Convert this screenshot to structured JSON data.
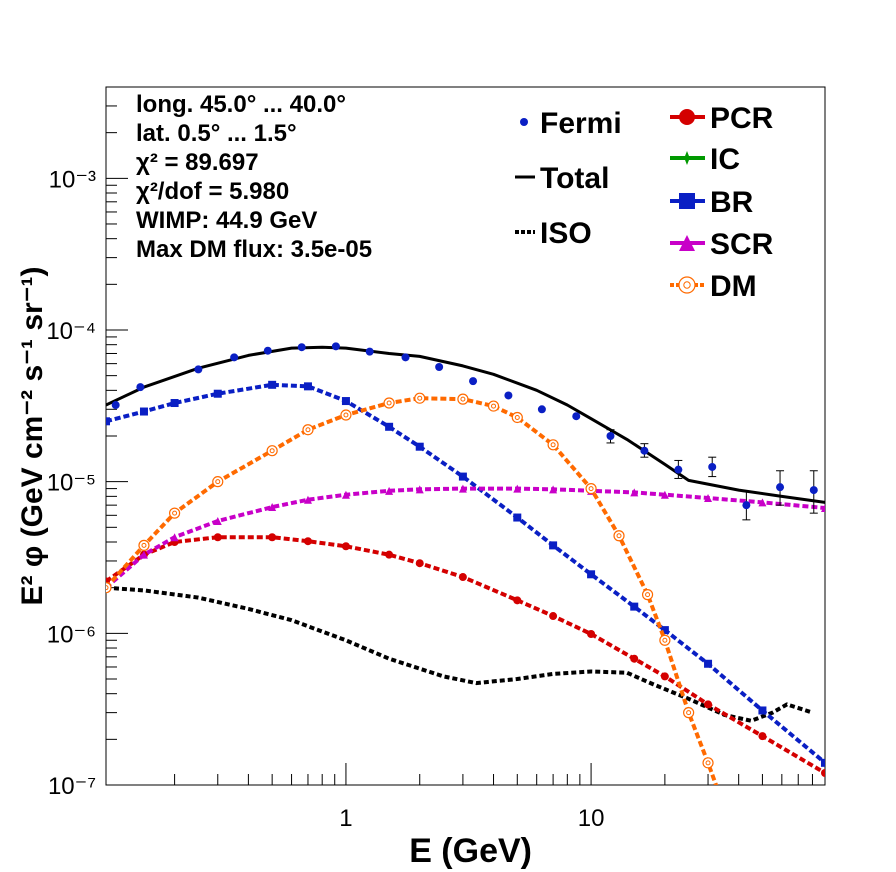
{
  "chart_data": {
    "type": "scatter",
    "xlabel": "E (GeV)",
    "ylabel": "E² φ (GeV cm⁻² s⁻¹ sr⁻¹)",
    "xscale": "log",
    "yscale": "log",
    "xlim": [
      0.105,
      90
    ],
    "ylim": [
      1e-07,
      0.004
    ],
    "x_tick_labels": [
      "1",
      "10"
    ],
    "y_tick_labels": [
      "10⁻⁷",
      "10⁻⁶",
      "10⁻⁵",
      "10⁻⁴",
      "10⁻³"
    ],
    "y_ticks": [
      1e-07,
      1e-06,
      1e-05,
      0.0001,
      0.001
    ],
    "x_ticks": [
      1,
      10
    ],
    "info_lines": [
      "long. 45.0° ... 40.0°",
      "lat. 0.5° ... 1.5°",
      "χ² = 89.697",
      "χ²/dof = 5.980",
      "WIMP: 44.9 GeV",
      "Max DM flux: 3.5e-05"
    ],
    "legend_placement": "top-right",
    "legend_left": [
      "Fermi",
      "Total",
      "ISO"
    ],
    "legend_right": [
      "PCR",
      "IC",
      "BR",
      "SCR",
      "DM"
    ],
    "fermi": {
      "name": "Fermi",
      "color": "#0a1fc4",
      "x": [
        0.115,
        0.145,
        0.25,
        0.35,
        0.48,
        0.66,
        0.91,
        1.25,
        1.75,
        2.4,
        3.3,
        4.6,
        6.3,
        8.7,
        12,
        16.5,
        22.7,
        31.2,
        43,
        59,
        81
      ],
      "y": [
        3.2e-05,
        4.2e-05,
        5.5e-05,
        6.6e-05,
        7.3e-05,
        7.7e-05,
        7.8e-05,
        7.2e-05,
        6.6e-05,
        5.7e-05,
        4.6e-05,
        3.7e-05,
        3e-05,
        2.7e-05,
        2e-05,
        1.6e-05,
        1.2e-05,
        1.25e-05,
        7e-06,
        9.2e-06,
        8.8e-06
      ],
      "err_low": [
        null,
        null,
        null,
        null,
        null,
        null,
        null,
        null,
        null,
        null,
        null,
        null,
        null,
        null,
        1.8e-05,
        1.45e-05,
        1.05e-05,
        1.08e-05,
        5.6e-06,
        7e-06,
        6.2e-06
      ],
      "err_high": [
        null,
        null,
        null,
        null,
        null,
        null,
        null,
        null,
        null,
        null,
        null,
        null,
        null,
        null,
        2.2e-05,
        1.78e-05,
        1.38e-05,
        1.45e-05,
        8.6e-06,
        1.18e-05,
        1.18e-05
      ]
    },
    "series": [
      {
        "name": "Total",
        "color": "#000000",
        "style": "solid",
        "x": [
          0.105,
          0.15,
          0.25,
          0.4,
          0.6,
          0.8,
          1.0,
          1.5,
          2.0,
          3.0,
          4.0,
          6.0,
          8.0,
          10,
          14,
          20,
          25,
          40,
          60,
          90
        ],
        "y": [
          3.2e-05,
          4.2e-05,
          5.6e-05,
          6.8e-05,
          7.6e-05,
          7.7e-05,
          7.6e-05,
          7e-05,
          6.7e-05,
          5.8e-05,
          5.1e-05,
          4e-05,
          3.2e-05,
          2.6e-05,
          1.9e-05,
          1.3e-05,
          1.02e-05,
          8.8e-06,
          8e-06,
          7.3e-06
        ]
      },
      {
        "name": "ISO",
        "color": "#000000",
        "style": "dotted",
        "x": [
          0.105,
          0.15,
          0.25,
          0.4,
          0.6,
          1.0,
          1.5,
          2.5,
          3.4,
          5,
          7,
          10,
          14,
          18,
          25,
          35,
          45,
          55,
          63,
          80
        ],
        "y": [
          2e-06,
          1.92e-06,
          1.72e-06,
          1.45e-06,
          1.22e-06,
          9e-07,
          6.8e-07,
          5.2e-07,
          4.7e-07,
          5e-07,
          5.4e-07,
          5.6e-07,
          5.5e-07,
          4.6e-07,
          3.7e-07,
          2.9e-07,
          2.65e-07,
          3e-07,
          3.4e-07,
          3e-07
        ]
      },
      {
        "name": "PCR",
        "color": "#d40000",
        "style": "dash-marker",
        "marker": "circle",
        "x": [
          0.105,
          0.15,
          0.2,
          0.3,
          0.5,
          0.7,
          1.0,
          1.5,
          2.0,
          3.0,
          5.0,
          7.0,
          10,
          15,
          20,
          30,
          50,
          90
        ],
        "y": [
          2.2e-06,
          3.3e-06,
          4e-06,
          4.3e-06,
          4.3e-06,
          4.05e-06,
          3.75e-06,
          3.3e-06,
          2.9e-06,
          2.35e-06,
          1.65e-06,
          1.3e-06,
          9.9e-07,
          6.8e-07,
          5.2e-07,
          3.4e-07,
          2.1e-07,
          1.2e-07
        ]
      },
      {
        "name": "IC",
        "color": "#009900",
        "style": "dash-marker",
        "marker": "star",
        "x": [],
        "y": []
      },
      {
        "name": "BR",
        "color": "#0a1fc4",
        "style": "dash-marker",
        "marker": "square",
        "x": [
          0.105,
          0.15,
          0.2,
          0.3,
          0.5,
          0.7,
          1.0,
          1.5,
          2.0,
          3.0,
          5.0,
          7.0,
          10,
          15,
          20,
          30,
          50,
          90
        ],
        "y": [
          2.5e-05,
          2.9e-05,
          3.3e-05,
          3.8e-05,
          4.35e-05,
          4.25e-05,
          3.4e-05,
          2.3e-05,
          1.7e-05,
          1.08e-05,
          5.8e-06,
          3.8e-06,
          2.45e-06,
          1.5e-06,
          1.05e-06,
          6.3e-07,
          3.1e-07,
          1.4e-07
        ]
      },
      {
        "name": "SCR",
        "color": "#c800c8",
        "style": "dash-marker",
        "marker": "triangle",
        "x": [
          0.105,
          0.15,
          0.2,
          0.3,
          0.5,
          0.7,
          1.0,
          1.5,
          2.0,
          3.0,
          5.0,
          7.0,
          10,
          15,
          20,
          30,
          50,
          90
        ],
        "y": [
          2e-06,
          3.3e-06,
          4.3e-06,
          5.5e-06,
          6.8e-06,
          7.6e-06,
          8.2e-06,
          8.7e-06,
          8.9e-06,
          9e-06,
          9e-06,
          8.9e-06,
          8.7e-06,
          8.5e-06,
          8.2e-06,
          7.8e-06,
          7.3e-06,
          6.7e-06
        ]
      },
      {
        "name": "DM",
        "color": "#ff6a00",
        "style": "dash-marker",
        "marker": "open-circle",
        "x": [
          0.105,
          0.15,
          0.2,
          0.3,
          0.5,
          0.7,
          1.0,
          1.5,
          2.0,
          3.0,
          4.0,
          5.0,
          7.0,
          10,
          13,
          17,
          20,
          25,
          30,
          35
        ],
        "y": [
          2e-06,
          3.8e-06,
          6.2e-06,
          1e-05,
          1.6e-05,
          2.2e-05,
          2.75e-05,
          3.3e-05,
          3.55e-05,
          3.5e-05,
          3.15e-05,
          2.65e-05,
          1.75e-05,
          9e-06,
          4.4e-06,
          1.8e-06,
          9e-07,
          3e-07,
          1.4e-07,
          7e-08
        ]
      }
    ]
  }
}
